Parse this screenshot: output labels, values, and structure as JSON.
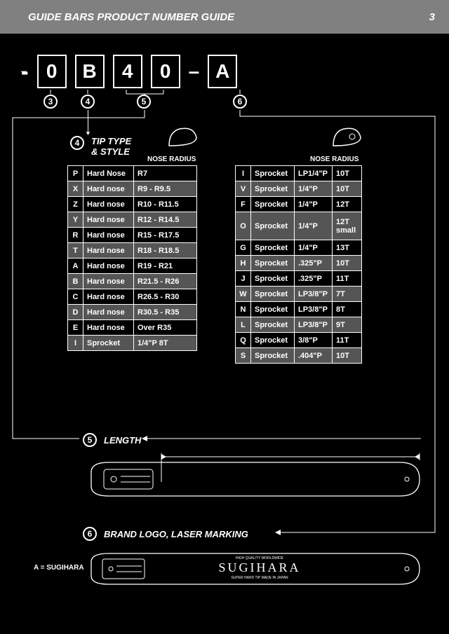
{
  "header": {
    "title": "GUIDE BARS PRODUCT NUMBER GUIDE",
    "page": "3"
  },
  "code": {
    "c1": "0",
    "c2": "B",
    "c3": "4",
    "c4": "0",
    "c5": "A"
  },
  "refs": {
    "r3": "3",
    "r4": "4",
    "r5": "5",
    "r6": "6"
  },
  "sec4": {
    "num": "4",
    "title_l1": "TIP TYPE",
    "title_l2": "& STYLE",
    "nose_hdr": "NOSE RADIUS",
    "left": [
      {
        "c": "P",
        "t": "Hard Nose",
        "r": "R7"
      },
      {
        "c": "X",
        "t": "Hard nose",
        "r": "R9 - R9.5",
        "shade": true
      },
      {
        "c": "Z",
        "t": "Hard nose",
        "r": "R10 - R11.5"
      },
      {
        "c": "Y",
        "t": "Hard nose",
        "r": "R12 - R14.5",
        "shade": true
      },
      {
        "c": "R",
        "t": "Hard nose",
        "r": "R15 - R17.5"
      },
      {
        "c": "T",
        "t": "Hard nose",
        "r": "R18 - R18.5",
        "shade": true
      },
      {
        "c": "A",
        "t": "Hard nose",
        "r": "R19 - R21"
      },
      {
        "c": "B",
        "t": "Hard nose",
        "r": "R21.5 - R26",
        "shade": true
      },
      {
        "c": "C",
        "t": "Hard nose",
        "r": "R26.5 - R30"
      },
      {
        "c": "D",
        "t": "Hard nose",
        "r": "R30.5 - R35",
        "shade": true
      },
      {
        "c": "E",
        "t": "Hard nose",
        "r": "Over R35"
      },
      {
        "c": "I",
        "t": "Sprocket",
        "r": "1/4\"P      8T",
        "shade": true
      }
    ],
    "right": [
      {
        "c": "I",
        "t": "Sprocket",
        "p": "LP1/4\"P",
        "teeth": "10T"
      },
      {
        "c": "V",
        "t": "Sprocket",
        "p": "1/4\"P",
        "teeth": "10T",
        "shade": true
      },
      {
        "c": "F",
        "t": "Sprocket",
        "p": "1/4\"P",
        "teeth": "12T"
      },
      {
        "c": "O",
        "t": "Sprocket",
        "p": "1/4\"P",
        "teeth": "12T small",
        "shade": true,
        "tall": true
      },
      {
        "c": "G",
        "t": "Sprocket",
        "p": "1/4\"P",
        "teeth": "13T"
      },
      {
        "c": "H",
        "t": "Sprocket",
        "p": ".325\"P",
        "teeth": "10T",
        "shade": true
      },
      {
        "c": "J",
        "t": "Sprocket",
        "p": ".325\"P",
        "teeth": "11T"
      },
      {
        "c": "W",
        "t": "Sprocket",
        "p": "LP3/8\"P",
        "teeth": "7T",
        "shade": true
      },
      {
        "c": "N",
        "t": "Sprocket",
        "p": "LP3/8\"P",
        "teeth": "8T"
      },
      {
        "c": "L",
        "t": "Sprocket",
        "p": "LP3/8\"P",
        "teeth": "9T",
        "shade": true
      },
      {
        "c": "Q",
        "t": "Sprocket",
        "p": "3/8\"P",
        "teeth": "11T"
      },
      {
        "c": "S",
        "t": "Sprocket",
        "p": ".404\"P",
        "teeth": "10T",
        "shade": true
      }
    ]
  },
  "sec5": {
    "num": "5",
    "label": "LENGTH"
  },
  "sec6": {
    "num": "6",
    "label": "BRAND LOGO, LASER MARKING",
    "brand_note": "A = SUGIHARA",
    "brand_text": "SUGIHARA"
  },
  "style": {
    "bg": "#000000",
    "fg": "#ffffff",
    "header_bg": "#808080",
    "shade": "#555555",
    "font": "Arial",
    "code_box_border": 2
  }
}
